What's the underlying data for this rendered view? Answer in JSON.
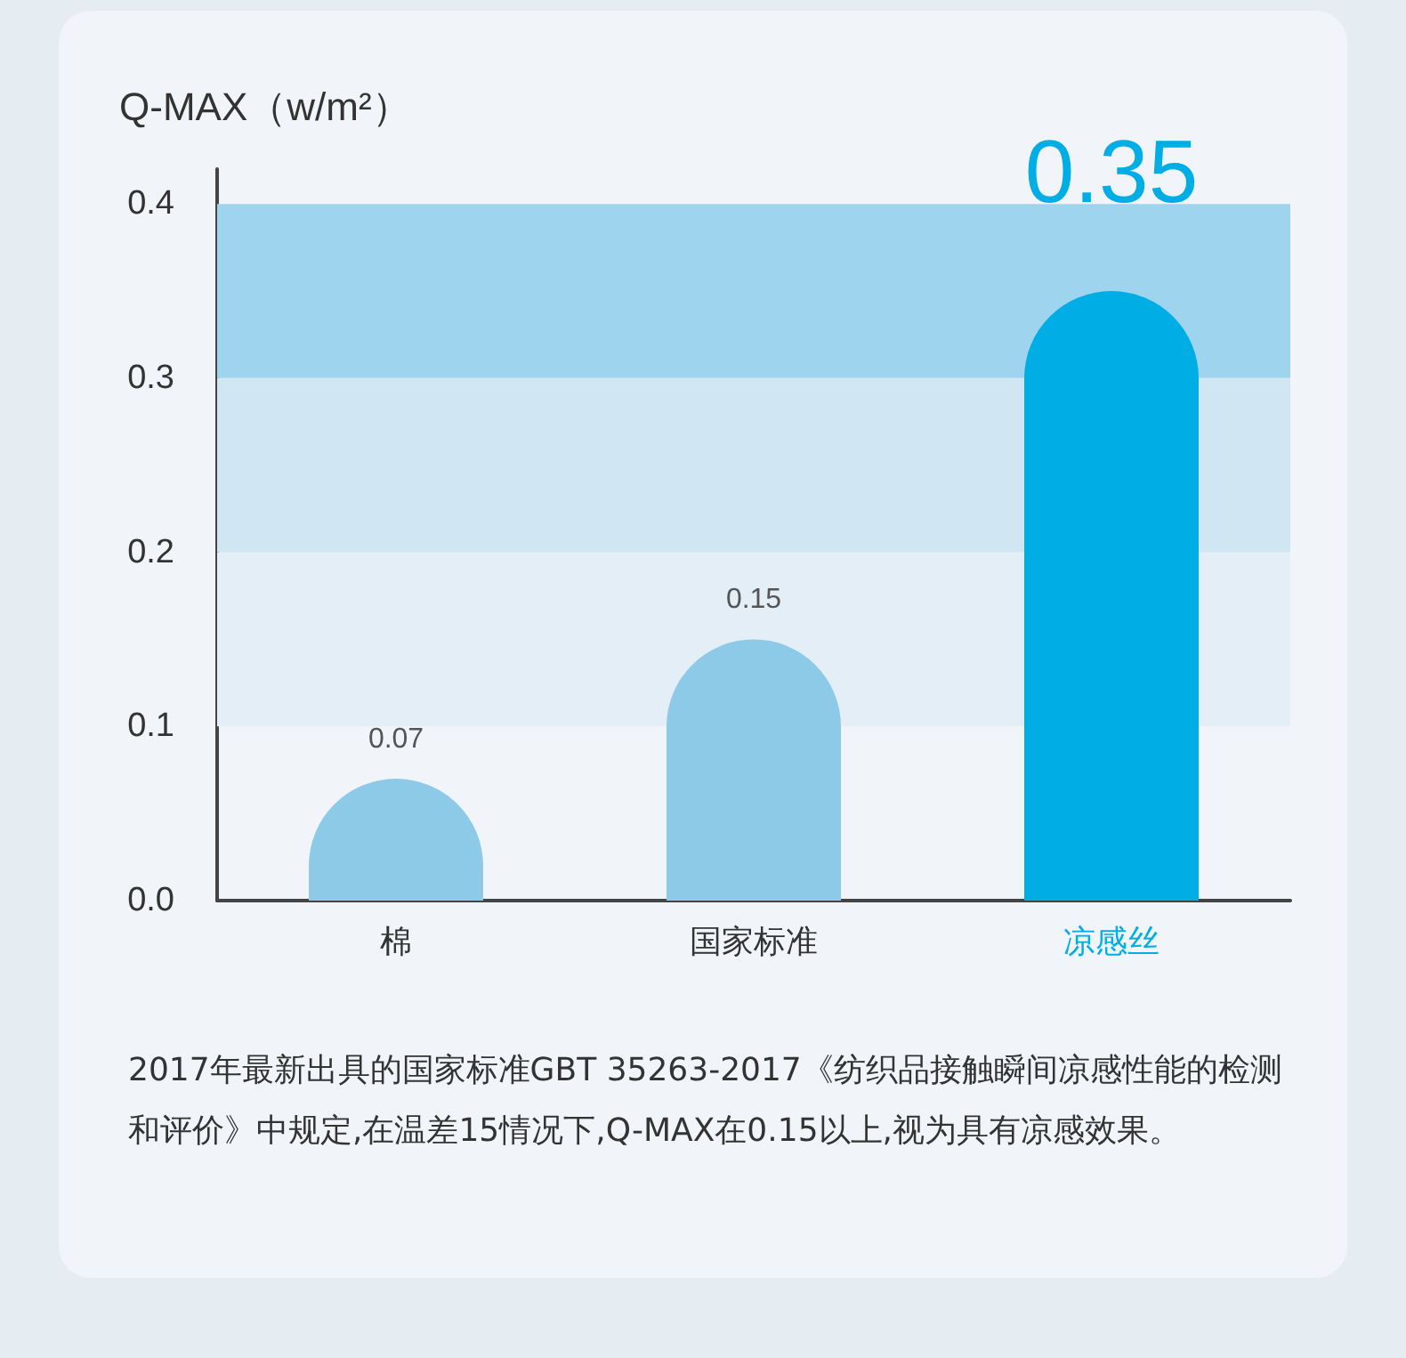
{
  "chart_data": {
    "type": "bar",
    "ylabel": "Q-MAX（w/m²）",
    "categories": [
      "棉",
      "国家标准",
      "凉感丝"
    ],
    "values": [
      0.07,
      0.15,
      0.35
    ],
    "colors": [
      "#8dcae8",
      "#8dcae8",
      "#00ade4"
    ],
    "data_labels": true,
    "grid": false,
    "ylim": [
      0,
      0.42
    ],
    "yticks": [
      {
        "value": 0,
        "label": "0.0"
      },
      0.1,
      0.2,
      0.3,
      0.4
    ],
    "bands": [
      {
        "axis": "y",
        "from": 0.1,
        "to": 0.2,
        "color": "#e3eef7"
      },
      {
        "axis": "y",
        "from": 0.2,
        "to": 0.3,
        "color": "#d0e6f3"
      },
      {
        "axis": "y",
        "from": 0.3,
        "to": 0.4,
        "color": "#9fd4ee"
      }
    ],
    "annotations": [
      "2017年最新出具的国家标准GBT 35263-2017《纺织品接触瞬间凉感性能的检测和评价》中规定,在温差15情况下,Q-MAX在0.15以上,视为具有凉感效果。"
    ]
  }
}
